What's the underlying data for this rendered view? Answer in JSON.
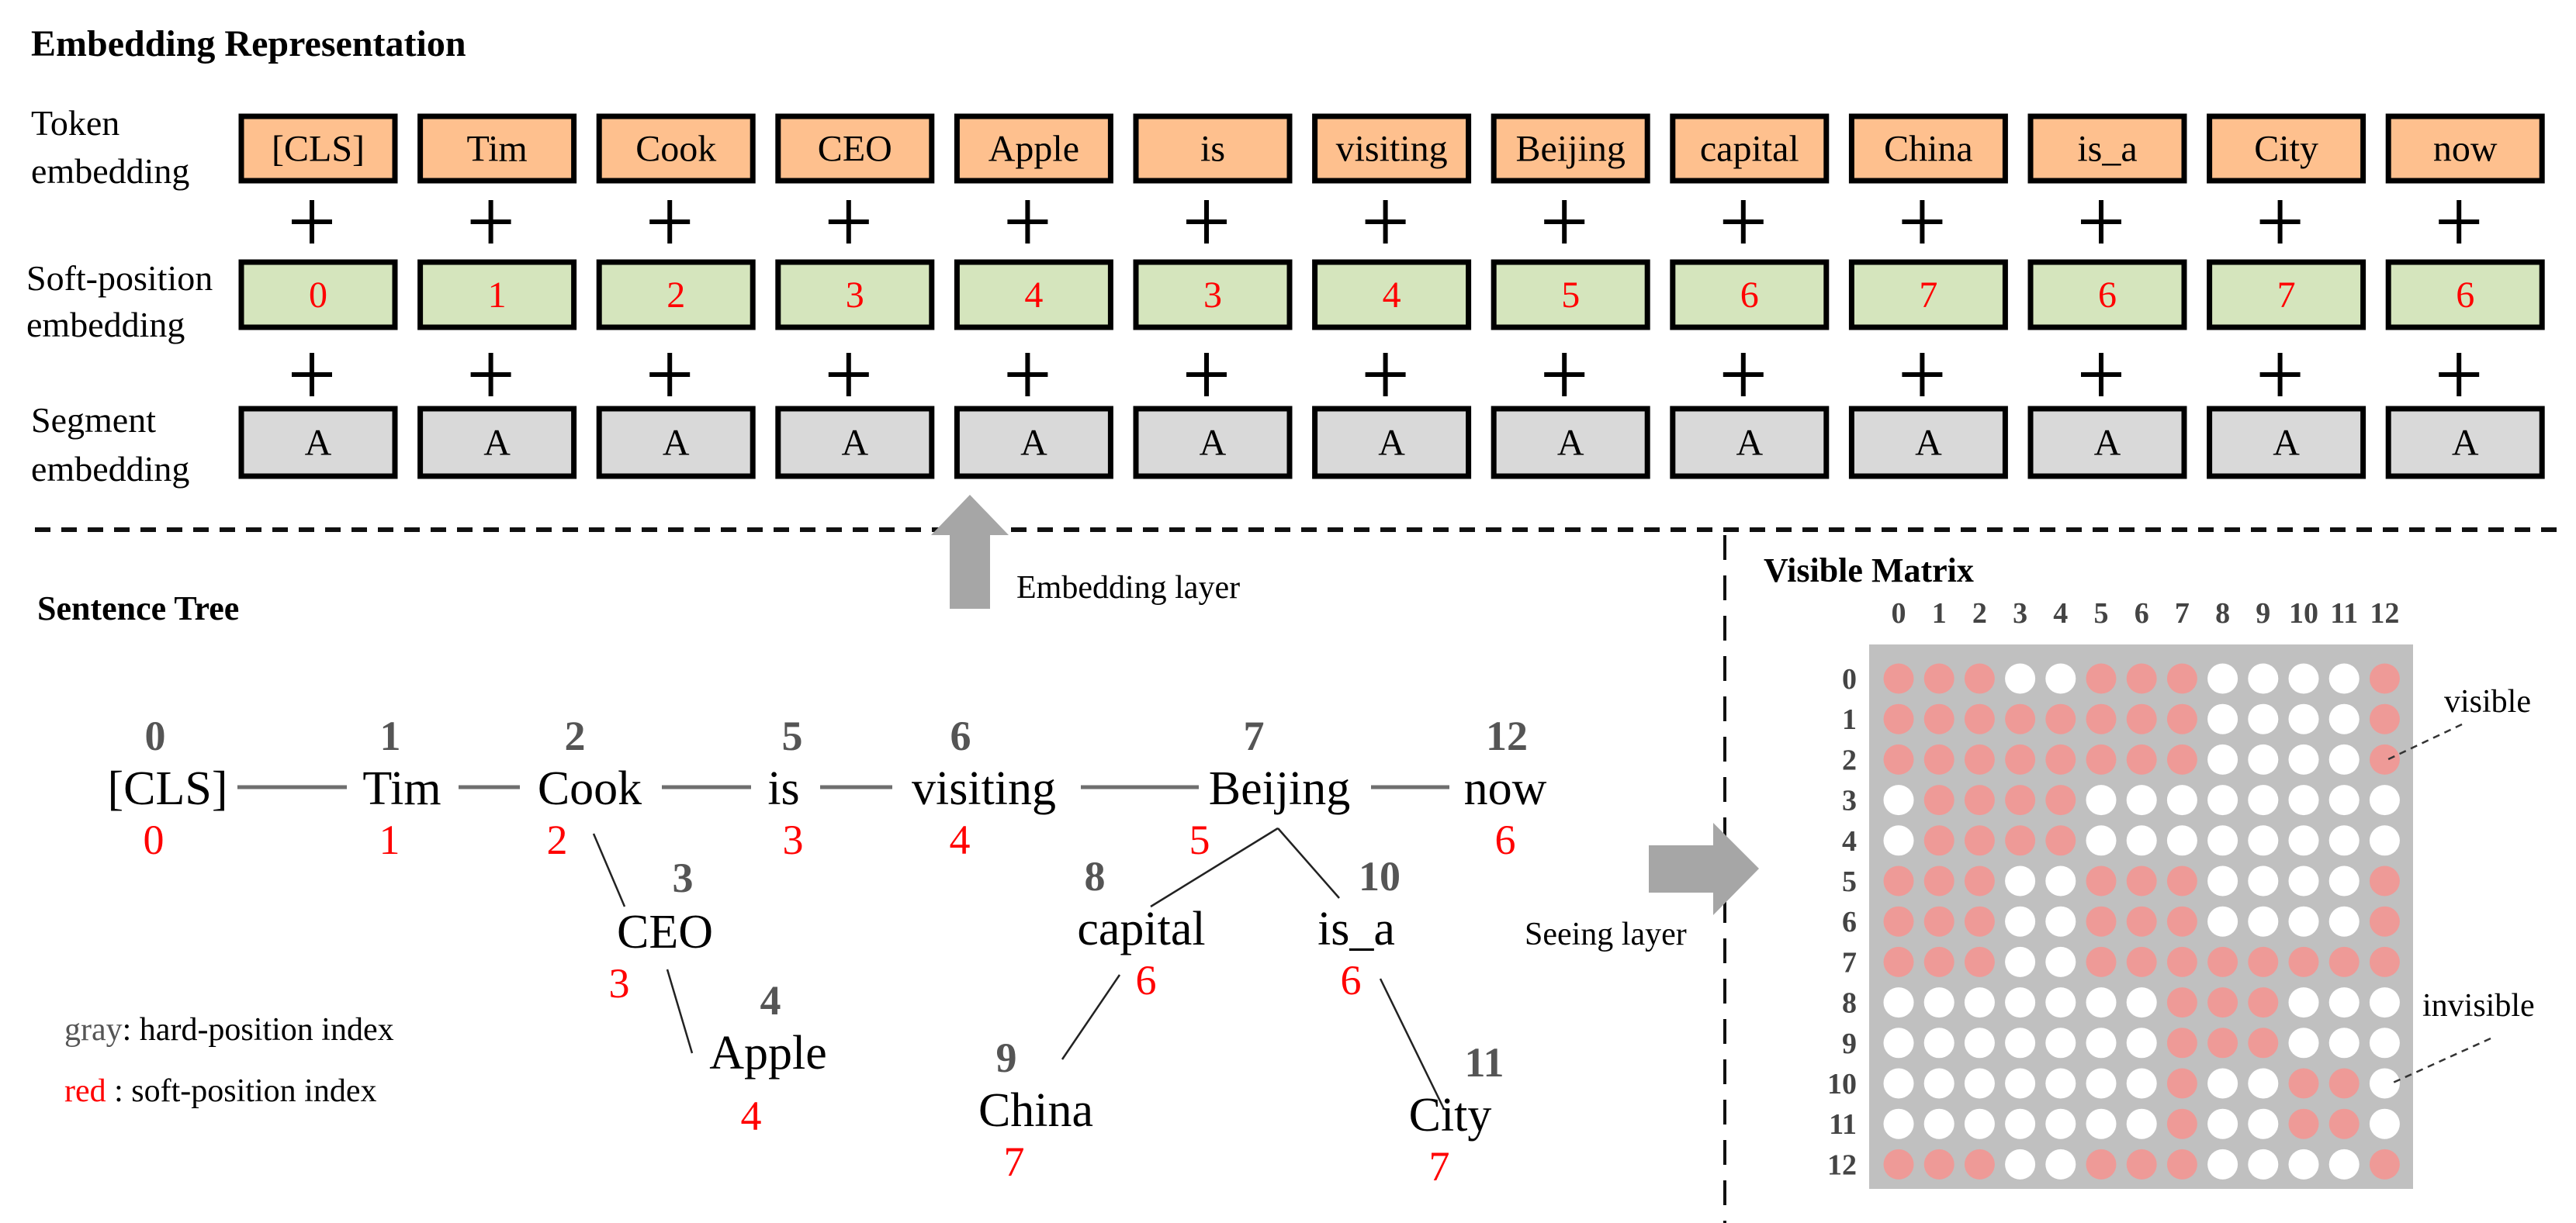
{
  "embedding": {
    "title": "Embedding Representation",
    "row_labels": [
      {
        "line1": "Token",
        "line2": "embedding"
      },
      {
        "line1": "Soft-position",
        "line2": "embedding"
      },
      {
        "line1": "Segment",
        "line2": "embedding"
      }
    ],
    "tokens": [
      "[CLS]",
      "Tim",
      "Cook",
      "CEO",
      "Apple",
      "is",
      "visiting",
      "Beijing",
      "capital",
      "China",
      "is_a",
      "City",
      "now"
    ],
    "soft_positions": [
      "0",
      "1",
      "2",
      "3",
      "4",
      "3",
      "4",
      "5",
      "6",
      "7",
      "6",
      "7",
      "6"
    ],
    "segments": [
      "A",
      "A",
      "A",
      "A",
      "A",
      "A",
      "A",
      "A",
      "A",
      "A",
      "A",
      "A",
      "A"
    ],
    "plus_symbol": "+",
    "colors": {
      "token": "#fec08e",
      "soft": "#d5e5bd",
      "segment": "#d9d9d9"
    }
  },
  "arrows": {
    "embedding_layer": "Embedding layer",
    "seeing_layer": "Seeing layer"
  },
  "tree": {
    "title": "Sentence Tree",
    "nodes": [
      {
        "word": "[CLS]",
        "hard": "0",
        "soft": "0"
      },
      {
        "word": "Tim",
        "hard": "1",
        "soft": "1"
      },
      {
        "word": "Cook",
        "hard": "2",
        "soft": "2"
      },
      {
        "word": "CEO",
        "hard": "3",
        "soft": "3"
      },
      {
        "word": "Apple",
        "hard": "4",
        "soft": "4"
      },
      {
        "word": "is",
        "hard": "5",
        "soft": "3"
      },
      {
        "word": "visiting",
        "hard": "6",
        "soft": "4"
      },
      {
        "word": "Beijing",
        "hard": "7",
        "soft": "5"
      },
      {
        "word": "capital",
        "hard": "8",
        "soft": "6"
      },
      {
        "word": "China",
        "hard": "9",
        "soft": "7"
      },
      {
        "word": "is_a",
        "hard": "10",
        "soft": "6"
      },
      {
        "word": "City",
        "hard": "11",
        "soft": "7"
      },
      {
        "word": "now",
        "hard": "12",
        "soft": "6"
      }
    ],
    "edges": [
      [
        0,
        1
      ],
      [
        1,
        2
      ],
      [
        2,
        5
      ],
      [
        5,
        6
      ],
      [
        6,
        7
      ],
      [
        7,
        12
      ],
      [
        2,
        3
      ],
      [
        3,
        4
      ],
      [
        7,
        8
      ],
      [
        7,
        10
      ],
      [
        8,
        9
      ],
      [
        10,
        11
      ]
    ],
    "legend": {
      "gray_key": "gray",
      "gray_text": ": hard-position index",
      "red_key": "red",
      "red_text": " : soft-position index"
    }
  },
  "matrix": {
    "title": "Visible Matrix",
    "labels": [
      "0",
      "1",
      "2",
      "3",
      "4",
      "5",
      "6",
      "7",
      "8",
      "9",
      "10",
      "11",
      "12"
    ],
    "rows": [
      [
        1,
        1,
        1,
        0,
        0,
        1,
        1,
        1,
        0,
        0,
        0,
        0,
        1
      ],
      [
        1,
        1,
        1,
        1,
        1,
        1,
        1,
        1,
        0,
        0,
        0,
        0,
        1
      ],
      [
        1,
        1,
        1,
        1,
        1,
        1,
        1,
        1,
        0,
        0,
        0,
        0,
        1
      ],
      [
        0,
        1,
        1,
        1,
        1,
        0,
        0,
        0,
        0,
        0,
        0,
        0,
        0
      ],
      [
        0,
        1,
        1,
        1,
        1,
        0,
        0,
        0,
        0,
        0,
        0,
        0,
        0
      ],
      [
        1,
        1,
        1,
        0,
        0,
        1,
        1,
        1,
        0,
        0,
        0,
        0,
        1
      ],
      [
        1,
        1,
        1,
        0,
        0,
        1,
        1,
        1,
        0,
        0,
        0,
        0,
        1
      ],
      [
        1,
        1,
        1,
        0,
        0,
        1,
        1,
        1,
        1,
        1,
        1,
        1,
        1
      ],
      [
        0,
        0,
        0,
        0,
        0,
        0,
        0,
        1,
        1,
        1,
        0,
        0,
        0
      ],
      [
        0,
        0,
        0,
        0,
        0,
        0,
        0,
        1,
        1,
        1,
        0,
        0,
        0
      ],
      [
        0,
        0,
        0,
        0,
        0,
        0,
        0,
        1,
        0,
        0,
        1,
        1,
        0
      ],
      [
        0,
        0,
        0,
        0,
        0,
        0,
        0,
        1,
        0,
        0,
        1,
        1,
        0
      ],
      [
        1,
        1,
        1,
        0,
        0,
        1,
        1,
        1,
        0,
        0,
        0,
        0,
        1
      ]
    ],
    "visible_label": "visible",
    "invisible_label": "invisible",
    "colors": {
      "visible": "#ee9a97",
      "invisible": "#ffffff",
      "background": "#c0c0c0"
    }
  }
}
